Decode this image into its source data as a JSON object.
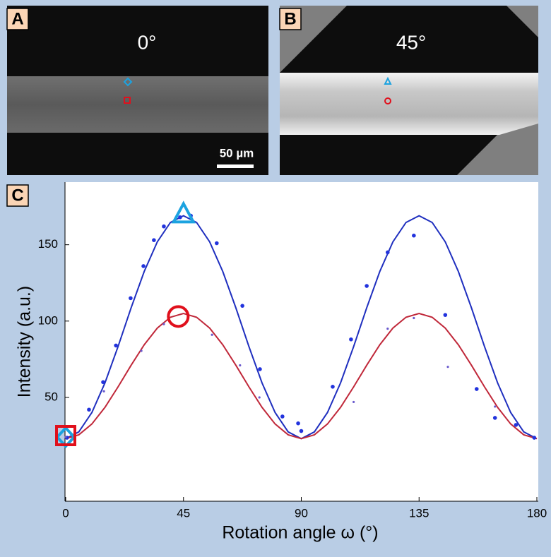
{
  "panels": {
    "a": {
      "label": "A",
      "text": "0°",
      "scale": "50 µm"
    },
    "b": {
      "label": "B",
      "text": "45°"
    },
    "c": {
      "label": "C"
    }
  },
  "chart_data": {
    "type": "line",
    "xlabel": "Rotation angle ω (°)",
    "ylabel": "Intensity (a.u.)",
    "xlim": [
      0,
      180
    ],
    "ylim": [
      -18,
      191
    ],
    "xticks": [
      0,
      45,
      90,
      135,
      180
    ],
    "yticks": [
      50,
      100,
      150
    ],
    "series": [
      {
        "type": "line",
        "color": "#1f2fbf",
        "x": [
          0,
          5,
          10,
          15,
          20,
          25,
          30,
          35,
          40,
          45,
          50,
          55,
          60,
          65,
          70,
          75,
          80,
          85,
          90,
          95,
          100,
          105,
          110,
          115,
          120,
          125,
          130,
          135,
          140,
          145,
          150,
          155,
          160,
          165,
          170,
          175,
          180
        ],
        "values": [
          23,
          27.4,
          40.1,
          59.5,
          83.3,
          108.7,
          132.5,
          151.9,
          164.6,
          169,
          164.6,
          151.9,
          132.5,
          108.7,
          83.3,
          59.5,
          40.1,
          27.4,
          23,
          27.4,
          40.1,
          59.5,
          83.3,
          108.7,
          132.5,
          151.9,
          164.6,
          169,
          164.6,
          151.9,
          132.5,
          108.7,
          83.3,
          59.5,
          40.1,
          27.4,
          23
        ]
      },
      {
        "type": "line",
        "color": "#c0283a",
        "x": [
          0,
          5,
          10,
          15,
          20,
          25,
          30,
          35,
          40,
          45,
          50,
          55,
          60,
          65,
          70,
          75,
          80,
          85,
          90,
          95,
          100,
          105,
          110,
          115,
          120,
          125,
          130,
          135,
          140,
          145,
          150,
          155,
          160,
          165,
          170,
          175,
          180
        ],
        "values": [
          23,
          25.5,
          32.6,
          43.5,
          56.9,
          71.1,
          84.5,
          95.4,
          102.5,
          105,
          102.5,
          95.4,
          84.5,
          71.1,
          56.9,
          43.5,
          32.6,
          25.5,
          23,
          25.5,
          32.6,
          43.5,
          56.9,
          71.1,
          84.5,
          95.4,
          102.5,
          105,
          102.5,
          95.4,
          84.5,
          71.1,
          56.9,
          43.5,
          32.6,
          25.5,
          23
        ]
      },
      {
        "type": "scatter",
        "color": "#2233dd",
        "x": [
          0.5,
          8.9,
          14.3,
          19.2,
          24.8,
          29.7,
          33.7,
          37.5,
          43.7,
          47.8,
          57.7,
          67.5,
          74.2,
          82.8,
          88.8,
          90,
          102,
          109,
          115,
          123,
          133,
          145,
          157,
          164,
          172,
          179
        ],
        "values": [
          23.6,
          42,
          60,
          84,
          115,
          136,
          153,
          162,
          168,
          169,
          151,
          110,
          68.5,
          37.5,
          33,
          28,
          57,
          88,
          123,
          145,
          156,
          104,
          55.5,
          36.6,
          32,
          23.6
        ]
      },
      {
        "type": "scatter",
        "color": "#6a5acd",
        "x": [
          0,
          14.6,
          28.9,
          37.5,
          55.9,
          66.6,
          74,
          110,
          123,
          133,
          146,
          164
        ],
        "values": [
          24,
          54,
          80.5,
          98,
          91,
          71,
          50,
          47,
          95,
          102,
          70,
          44
        ]
      }
    ],
    "highlights": [
      {
        "shape": "triangle",
        "color": "#1ca3e0",
        "x": 45,
        "value": 170
      },
      {
        "shape": "circle",
        "color": "#e0101c",
        "x": 43,
        "value": 103
      },
      {
        "shape": "diamond",
        "color": "#1ca3e0",
        "x": 0,
        "value": 24
      },
      {
        "shape": "square",
        "color": "#e0101c",
        "x": 0,
        "value": 25
      }
    ]
  }
}
